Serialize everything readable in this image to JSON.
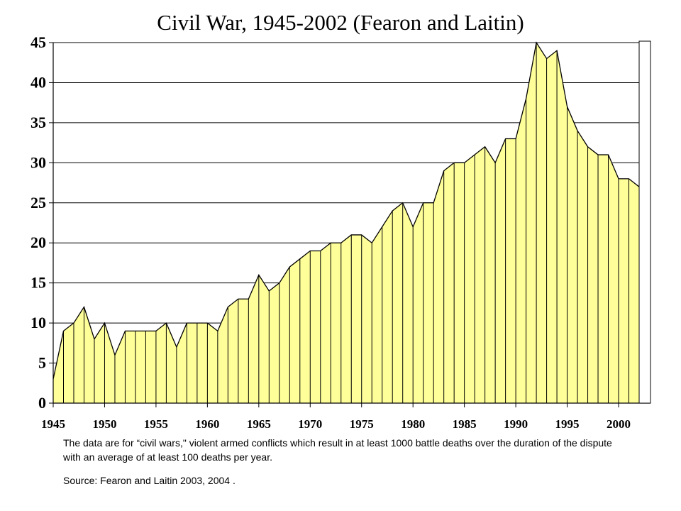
{
  "chart_data": {
    "type": "area",
    "title": "Civil War, 1945-2002 (Fearon and Laitin)",
    "xlabel": "",
    "ylabel": "",
    "x": [
      1945,
      1946,
      1947,
      1948,
      1949,
      1950,
      1951,
      1952,
      1953,
      1954,
      1955,
      1956,
      1957,
      1958,
      1959,
      1960,
      1961,
      1962,
      1963,
      1964,
      1965,
      1966,
      1967,
      1968,
      1969,
      1970,
      1971,
      1972,
      1973,
      1974,
      1975,
      1976,
      1977,
      1978,
      1979,
      1980,
      1981,
      1982,
      1983,
      1984,
      1985,
      1986,
      1987,
      1988,
      1989,
      1990,
      1991,
      1992,
      1993,
      1994,
      1995,
      1996,
      1997,
      1998,
      1999,
      2000,
      2001,
      2002
    ],
    "values": [
      3,
      9,
      10,
      12,
      8,
      10,
      6,
      9,
      9,
      9,
      9,
      10,
      7,
      10,
      10,
      10,
      9,
      12,
      13,
      13,
      16,
      14,
      15,
      17,
      18,
      19,
      19,
      20,
      20,
      21,
      21,
      20,
      22,
      24,
      25,
      22,
      25,
      25,
      29,
      30,
      30,
      31,
      32,
      30,
      33,
      33,
      38,
      45,
      43,
      44,
      37,
      34,
      32,
      31,
      31,
      28,
      28,
      27
    ],
    "xticks": [
      "1945",
      "1950",
      "1955",
      "1960",
      "1965",
      "1970",
      "1975",
      "1980",
      "1985",
      "1990",
      "1995",
      "2000"
    ],
    "xtick_values": [
      1945,
      1950,
      1955,
      1960,
      1965,
      1970,
      1975,
      1980,
      1985,
      1990,
      1995,
      2000
    ],
    "yticks": [
      "0",
      "5",
      "10",
      "15",
      "20",
      "25",
      "30",
      "35",
      "40",
      "45"
    ],
    "ytick_values": [
      0,
      5,
      10,
      15,
      20,
      25,
      30,
      35,
      40,
      45
    ],
    "ylim": [
      0,
      45
    ],
    "xlim": [
      1945,
      2002
    ],
    "grid": true,
    "fill_color": "#FFFF99",
    "line_color": "#000000"
  },
  "notes": {
    "description": "The data are for “civil wars,\" violent armed conflicts which result in at least 1000 battle deaths over the duration of the dispute with an average of at least 100 deaths per year.",
    "source": "Source: Fearon and Laitin 2003, 2004 ."
  }
}
